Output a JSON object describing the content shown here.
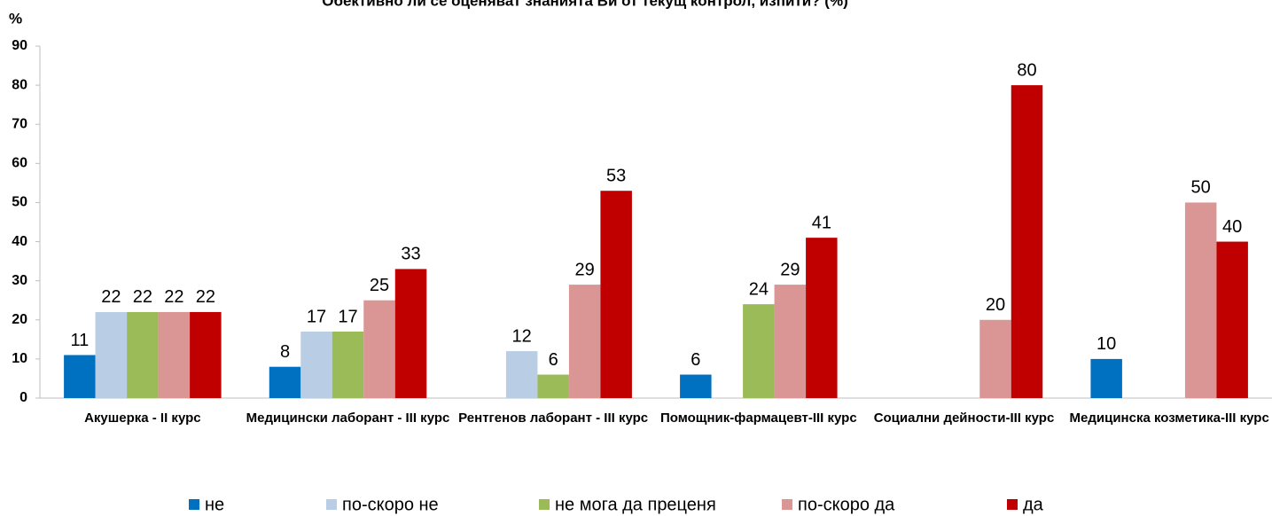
{
  "chart_data": {
    "type": "bar",
    "title": "Обективно ли се оценяват знанията Ви от текущ контрол, изпити? (%)",
    "y_label": "%",
    "categories": [
      "Акушерка - II курс",
      "Медицински лаборант - III курс",
      "Рентгенов  лаборант - III курс",
      "Помощник-фармацевт-III курс",
      "Социални дейности-III курс",
      "Медицинска козметика-III курс"
    ],
    "series": [
      {
        "name": "не",
        "color": "#0070c0",
        "values": [
          11,
          8,
          null,
          6,
          null,
          10
        ]
      },
      {
        "name": "по-скоро не",
        "color": "#b9cde5",
        "values": [
          22,
          17,
          12,
          null,
          null,
          null
        ]
      },
      {
        "name": "не мога да преценя",
        "color": "#9bbb59",
        "values": [
          22,
          17,
          6,
          24,
          null,
          null
        ]
      },
      {
        "name": "по-скоро да",
        "color": "#d99694",
        "values": [
          22,
          25,
          29,
          29,
          20,
          50
        ]
      },
      {
        "name": "да",
        "color": "#c00000",
        "values": [
          22,
          33,
          53,
          41,
          80,
          40
        ]
      }
    ],
    "ylim": [
      0,
      90
    ],
    "yticks": [
      0,
      10,
      20,
      30,
      40,
      50,
      60,
      70,
      80,
      90
    ],
    "grid": false,
    "legend": "bottom"
  }
}
